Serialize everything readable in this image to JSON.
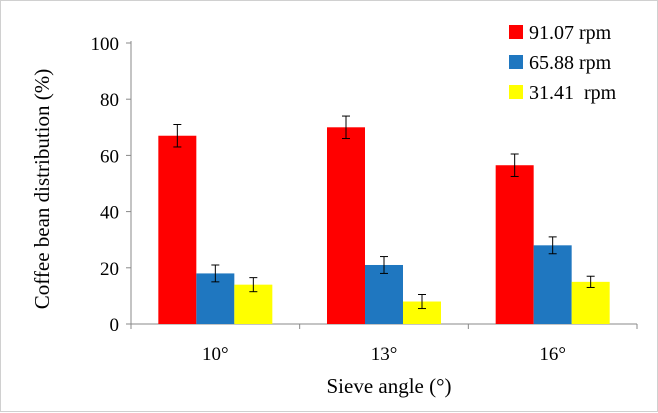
{
  "chart_data": {
    "type": "bar",
    "title": "",
    "xlabel": "Sieve angle (°)",
    "ylabel": "Coffee bean distribution (%)",
    "categories": [
      "10°",
      "13°",
      "16°"
    ],
    "ylim": [
      0,
      100
    ],
    "yticks": [
      0,
      20,
      40,
      60,
      80,
      100
    ],
    "grid": false,
    "legend_position": "top-right",
    "series": [
      {
        "name": "91.07 rpm",
        "color": "#ff0000",
        "values": [
          67,
          70,
          56.5
        ],
        "errors": [
          4,
          4,
          4
        ]
      },
      {
        "name": "65.88 rpm",
        "color": "#1f77c0",
        "values": [
          18,
          21,
          28
        ],
        "errors": [
          3,
          3,
          3
        ]
      },
      {
        "name": "31.41  rpm",
        "color": "#ffff00",
        "values": [
          14,
          8,
          15
        ],
        "errors": [
          2.5,
          2.5,
          2
        ]
      }
    ]
  }
}
